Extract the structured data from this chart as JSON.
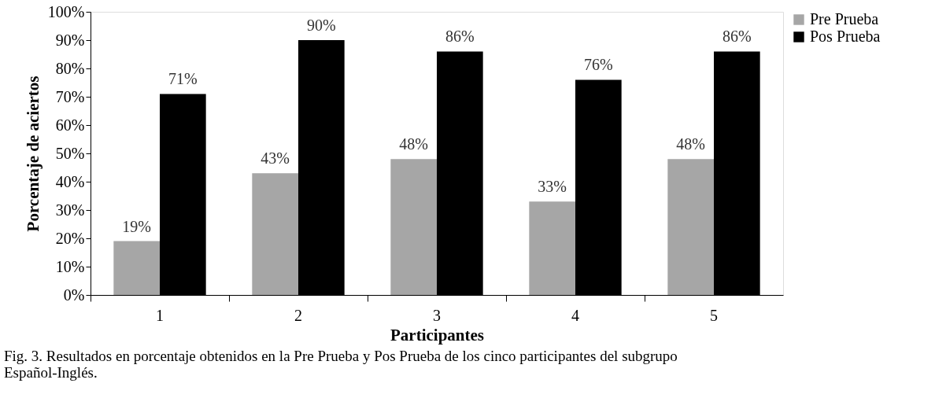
{
  "chart_data": {
    "type": "bar",
    "xlabel": "Participantes",
    "ylabel": "Porcentaje de aciertos",
    "categories": [
      "1",
      "2",
      "3",
      "4",
      "5"
    ],
    "series": [
      {
        "name": "Pre Prueba",
        "color": "#a6a6a6",
        "values": [
          19,
          43,
          48,
          33,
          48
        ],
        "value_labels": [
          "19%",
          "43%",
          "48%",
          "33%",
          "48%"
        ]
      },
      {
        "name": "Pos Prueba",
        "color": "#000000",
        "values": [
          71,
          90,
          86,
          76,
          86
        ],
        "value_labels": [
          "71%",
          "90%",
          "86%",
          "76%",
          "86%"
        ]
      }
    ],
    "ylim": [
      0,
      100
    ],
    "yticks": [
      {
        "value": 0,
        "label": "0%"
      },
      {
        "value": 10,
        "label": "10%"
      },
      {
        "value": 20,
        "label": "20%"
      },
      {
        "value": 30,
        "label": "30%"
      },
      {
        "value": 40,
        "label": "40%"
      },
      {
        "value": 50,
        "label": "50%"
      },
      {
        "value": 60,
        "label": "60%"
      },
      {
        "value": 70,
        "label": "70%"
      },
      {
        "value": 80,
        "label": "80%"
      },
      {
        "value": 90,
        "label": "90%"
      },
      {
        "value": 100,
        "label": "100%"
      }
    ],
    "grid": false,
    "legend": "right",
    "annotations": [
      "Fig. 3. Resultados en porcentaje obtenidos en la Pre Prueba y Pos Prueba de los cinco participantes del subgrupo Español-Inglés."
    ]
  }
}
